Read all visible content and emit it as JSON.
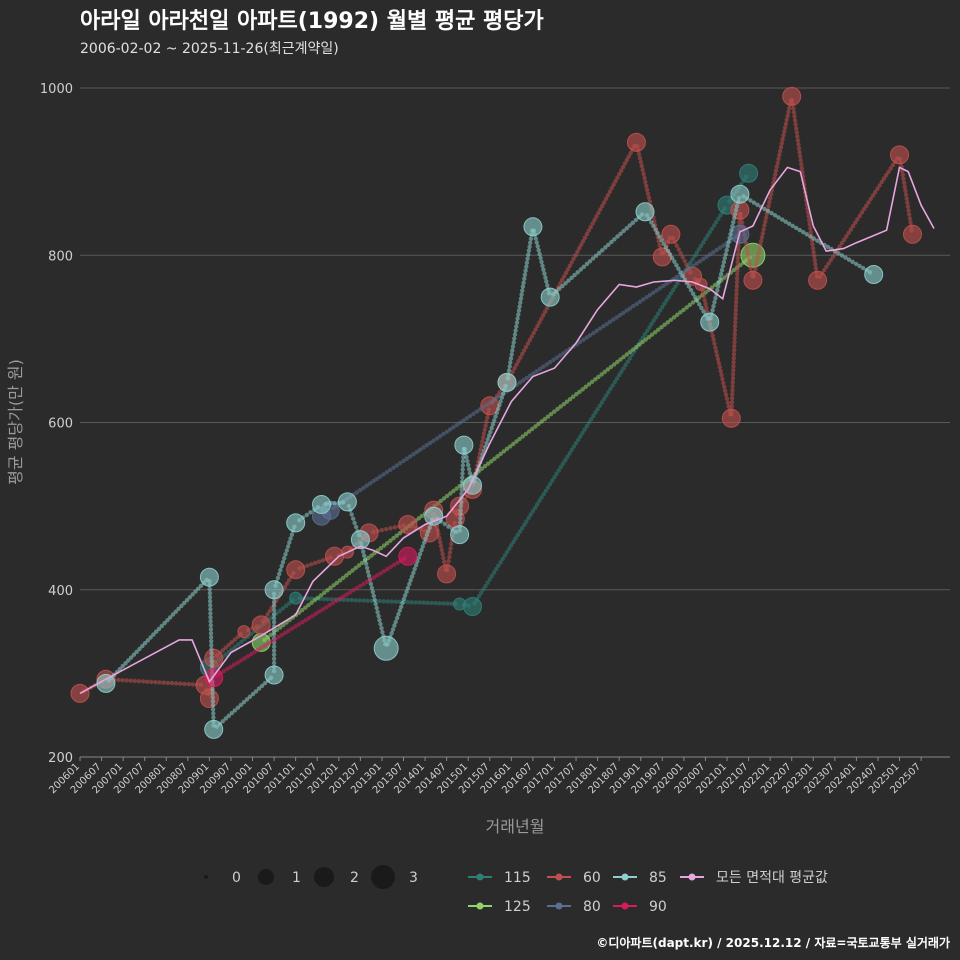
{
  "chart_data": {
    "type": "line",
    "title": "아라일 아라천일 아파트(1992) 월별 평균 평당가",
    "subtitle": "2006-02-02 ~ 2025-11-26(최근계약일)",
    "xlabel": "거래년월",
    "ylabel": "평균 평당가(만 원)",
    "caption": "©디아파트(dapt.kr) / 2025.12.12 / 자료=국토교통부 실거래가",
    "ylim": [
      200,
      1000
    ],
    "yticks": [
      200,
      400,
      600,
      800,
      1000
    ],
    "xlim": [
      2006.0,
      2026.17
    ],
    "xticks": [
      "200601",
      "200607",
      "200701",
      "200707",
      "200801",
      "200807",
      "200901",
      "200907",
      "201001",
      "201007",
      "201101",
      "201107",
      "201201",
      "201207",
      "201301",
      "201307",
      "201401",
      "201407",
      "201501",
      "201507",
      "201601",
      "201607",
      "201701",
      "201707",
      "201801",
      "201807",
      "201901",
      "201907",
      "202001",
      "202007",
      "202101",
      "202107",
      "202201",
      "202207",
      "202301",
      "202307",
      "202401",
      "202407",
      "202501",
      "202507"
    ],
    "size_legend": {
      "labels": [
        "0",
        "1",
        "2",
        "3"
      ]
    },
    "series": [
      {
        "name": "115",
        "color": "#2f7f78",
        "points": [
          [
            2009.0,
            307,
            1
          ],
          [
            2011.0,
            390,
            0.5
          ],
          [
            2014.8,
            383,
            0.5
          ],
          [
            2015.1,
            380,
            1
          ],
          [
            2021.0,
            860,
            1
          ],
          [
            2021.5,
            898,
            1
          ]
        ]
      },
      {
        "name": "125",
        "color": "#8fd66a",
        "points": [
          [
            2010.2,
            337,
            1
          ],
          [
            2021.6,
            800,
            1.5
          ]
        ]
      },
      {
        "name": "60",
        "color": "#c0504d",
        "points": [
          [
            2006.0,
            276,
            1
          ],
          [
            2006.6,
            293,
            1
          ],
          [
            2008.9,
            286,
            1
          ],
          [
            2009.0,
            270,
            1
          ],
          [
            2009.1,
            318,
            1
          ],
          [
            2009.8,
            350,
            0.5
          ],
          [
            2010.2,
            358,
            1
          ],
          [
            2011.0,
            424,
            1
          ],
          [
            2011.9,
            440,
            1
          ],
          [
            2012.2,
            445,
            0.5
          ],
          [
            2012.7,
            468,
            1
          ],
          [
            2013.6,
            478,
            1
          ],
          [
            2014.1,
            468,
            1
          ],
          [
            2014.2,
            495,
            1
          ],
          [
            2014.5,
            419,
            1
          ],
          [
            2014.7,
            485,
            1
          ],
          [
            2014.8,
            500,
            1
          ],
          [
            2015.1,
            520,
            1
          ],
          [
            2015.5,
            620,
            1
          ],
          [
            2015.9,
            648,
            1
          ],
          [
            2018.9,
            935,
            1
          ],
          [
            2019.5,
            798,
            1
          ],
          [
            2019.7,
            825,
            1
          ],
          [
            2020.2,
            775,
            1
          ],
          [
            2020.4,
            765,
            0.5
          ],
          [
            2021.1,
            605,
            1
          ],
          [
            2021.3,
            854,
            1
          ],
          [
            2021.6,
            770,
            1
          ],
          [
            2022.5,
            990,
            1
          ],
          [
            2023.1,
            770,
            1
          ],
          [
            2025.0,
            920,
            1
          ],
          [
            2025.3,
            825,
            1
          ]
        ]
      },
      {
        "name": "80",
        "color": "#5a6f92",
        "points": [
          [
            2011.6,
            488,
            1
          ],
          [
            2011.8,
            495,
            1
          ],
          [
            2021.3,
            825,
            1
          ]
        ]
      },
      {
        "name": "85",
        "color": "#8ccfcc",
        "points": [
          [
            2006.6,
            288,
            1
          ],
          [
            2009.0,
            415,
            1
          ],
          [
            2009.1,
            233,
            1
          ],
          [
            2010.5,
            298,
            1
          ],
          [
            2010.5,
            400,
            1
          ],
          [
            2011.0,
            480,
            1
          ],
          [
            2011.6,
            502,
            1
          ],
          [
            2012.2,
            505,
            1
          ],
          [
            2012.5,
            460,
            1
          ],
          [
            2013.1,
            330,
            1.5
          ],
          [
            2014.2,
            488,
            1
          ],
          [
            2014.8,
            466,
            1
          ],
          [
            2014.9,
            573,
            1
          ],
          [
            2015.1,
            525,
            1
          ],
          [
            2015.9,
            648,
            1
          ],
          [
            2016.5,
            834,
            1
          ],
          [
            2016.9,
            750,
            1
          ],
          [
            2019.1,
            852,
            1
          ],
          [
            2020.6,
            720,
            1
          ],
          [
            2021.3,
            873,
            1
          ],
          [
            2024.4,
            777,
            1
          ]
        ]
      },
      {
        "name": "90",
        "color": "#d81b60",
        "points": [
          [
            2009.1,
            295,
            1
          ],
          [
            2013.6,
            440,
            1
          ]
        ]
      },
      {
        "name": "모든 면적대 평균값",
        "color": "#e8a6e0",
        "points": [
          [
            2006.0,
            276,
            0
          ],
          [
            2006.6,
            293,
            0
          ],
          [
            2008.3,
            340,
            0
          ],
          [
            2008.6,
            340,
            0
          ],
          [
            2009.0,
            290,
            0
          ],
          [
            2009.5,
            325,
            0
          ],
          [
            2010.2,
            345,
            0
          ],
          [
            2011.0,
            370,
            0
          ],
          [
            2011.4,
            410,
            0
          ],
          [
            2012.0,
            440,
            0
          ],
          [
            2012.5,
            452,
            0
          ],
          [
            2012.8,
            447,
            0
          ],
          [
            2013.1,
            440,
            0
          ],
          [
            2013.5,
            462,
            0
          ],
          [
            2014.0,
            478,
            0
          ],
          [
            2014.5,
            488,
            0
          ],
          [
            2015.0,
            520,
            0
          ],
          [
            2015.5,
            575,
            0
          ],
          [
            2016.0,
            625,
            0
          ],
          [
            2016.5,
            655,
            0
          ],
          [
            2017.0,
            665,
            0
          ],
          [
            2017.5,
            695,
            0
          ],
          [
            2018.0,
            735,
            0
          ],
          [
            2018.5,
            765,
            0
          ],
          [
            2018.9,
            762,
            0
          ],
          [
            2019.3,
            768,
            0
          ],
          [
            2019.8,
            770,
            0
          ],
          [
            2020.2,
            768,
            0
          ],
          [
            2020.6,
            760,
            0
          ],
          [
            2020.9,
            748,
            0
          ],
          [
            2021.3,
            828,
            0
          ],
          [
            2021.6,
            835,
            0
          ],
          [
            2022.0,
            878,
            0
          ],
          [
            2022.4,
            905,
            0
          ],
          [
            2022.7,
            900,
            0
          ],
          [
            2023.0,
            835,
            0
          ],
          [
            2023.3,
            805,
            0
          ],
          [
            2023.7,
            808,
            0
          ],
          [
            2024.0,
            815,
            0
          ],
          [
            2024.7,
            830,
            0
          ],
          [
            2025.0,
            905,
            0
          ],
          [
            2025.2,
            900,
            0
          ],
          [
            2025.5,
            860,
            0
          ],
          [
            2025.8,
            832,
            0
          ]
        ]
      }
    ]
  }
}
